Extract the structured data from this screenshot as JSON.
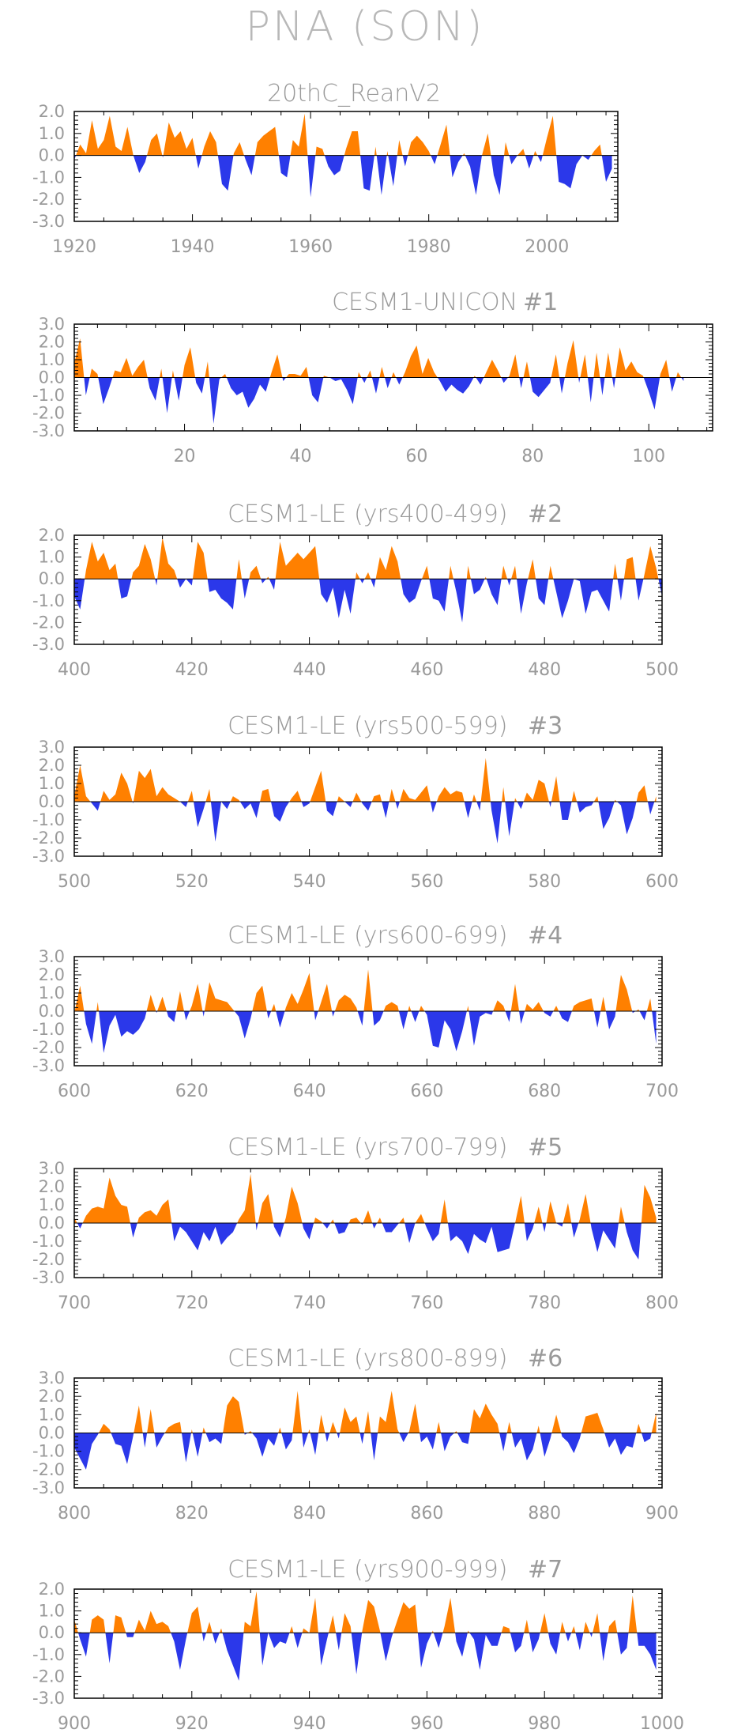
{
  "title": "PNA (SON)",
  "colors": {
    "positive": "#ff8000",
    "negative": "#2b38ea",
    "axis": "#000000",
    "text": "#9a9a9a"
  },
  "chart_data": [
    {
      "type": "area",
      "title": "20thC_ReanV2",
      "xlim": [
        1920,
        2012
      ],
      "xticks": [
        1920,
        1940,
        1960,
        1980,
        2000
      ],
      "ylim": [
        -3.0,
        2.0
      ],
      "yticks": [
        "2.0",
        "1.0",
        "0.0",
        "-1.0",
        "-2.0",
        "-3.0"
      ],
      "x_start": 1920,
      "values": [
        -0.2,
        0.5,
        0.1,
        1.6,
        0.3,
        0.7,
        1.8,
        0.4,
        0.2,
        1.3,
        0.0,
        -0.8,
        -0.3,
        0.7,
        1.0,
        -0.1,
        1.5,
        0.8,
        1.1,
        0.3,
        0.8,
        -0.6,
        0.4,
        1.1,
        0.6,
        -1.3,
        -1.6,
        0.1,
        0.6,
        -0.2,
        -0.9,
        0.6,
        0.9,
        1.1,
        1.3,
        -0.8,
        -1.0,
        0.7,
        0.4,
        1.9,
        -1.9,
        0.4,
        0.3,
        -0.5,
        -0.9,
        -0.7,
        0.3,
        1.1,
        1.1,
        -1.5,
        -1.6,
        0.4,
        -1.8,
        0.2,
        -1.4,
        0.7,
        -0.5,
        0.6,
        0.9,
        0.6,
        0.2,
        -0.4,
        0.5,
        1.4,
        -1.0,
        -0.3,
        0.1,
        -0.5,
        -1.8,
        0.0,
        1.0,
        -0.9,
        -1.8,
        0.6,
        -0.4,
        0.0,
        0.3,
        -0.6,
        0.2,
        -0.3,
        0.8,
        1.8,
        -1.2,
        -1.3,
        -1.5,
        -0.4,
        0.0,
        -0.2,
        0.2,
        0.5,
        -1.2,
        -0.6
      ]
    },
    {
      "type": "area",
      "title": "CESM1-UNICON",
      "run_label": "#1",
      "xlim": [
        1,
        111
      ],
      "xticks": [
        20,
        40,
        60,
        80,
        100
      ],
      "ylim": [
        -3.0,
        3.0
      ],
      "yticks": [
        "3.0",
        "2.0",
        "1.0",
        "0.0",
        "-1.0",
        "-2.0",
        "-3.0"
      ],
      "x_start": 1,
      "values": [
        0.8,
        2.2,
        -1.0,
        0.5,
        0.2,
        -1.5,
        -0.6,
        0.4,
        0.3,
        1.1,
        0.1,
        0.6,
        1.0,
        -0.6,
        -1.3,
        0.5,
        -2.0,
        0.4,
        -1.3,
        0.7,
        1.7,
        -0.3,
        -0.9,
        0.9,
        -2.6,
        -0.1,
        0.2,
        -0.6,
        -1.0,
        -0.8,
        -1.7,
        -1.2,
        -0.4,
        -0.8,
        0.3,
        1.3,
        -0.2,
        0.2,
        0.2,
        0.1,
        0.6,
        -1.0,
        -1.4,
        0.1,
        0.0,
        -0.2,
        -0.1,
        -0.7,
        -1.5,
        0.3,
        -0.3,
        0.4,
        -0.9,
        0.6,
        -0.6,
        0.3,
        -0.4,
        0.3,
        1.2,
        1.8,
        0.2,
        1.1,
        0.3,
        -0.2,
        -0.8,
        -0.4,
        -0.7,
        -0.9,
        -0.5,
        0.1,
        -0.4,
        0.3,
        1.0,
        0.4,
        -0.3,
        0.1,
        1.3,
        -0.6,
        0.9,
        -0.8,
        -1.1,
        -0.7,
        -0.3,
        1.3,
        -0.9,
        0.8,
        2.1,
        -0.3,
        1.3,
        -1.4,
        1.4,
        -1.0,
        1.4,
        -0.6,
        1.7,
        0.4,
        0.9,
        0.3,
        0.1,
        -0.8,
        -1.8,
        0.2,
        1.0,
        -0.8,
        0.3,
        -0.2
      ]
    },
    {
      "type": "area",
      "title": "CESM1-LE (yrs400-499)",
      "run_label": "#2",
      "xlim": [
        400,
        500
      ],
      "xticks": [
        400,
        420,
        440,
        460,
        480,
        500
      ],
      "ylim": [
        -3.0,
        2.0
      ],
      "yticks": [
        "2.0",
        "1.0",
        "0.0",
        "-1.0",
        "-2.0",
        "-3.0"
      ],
      "x_start": 400,
      "values": [
        -0.8,
        -1.4,
        0.4,
        1.7,
        0.8,
        1.2,
        0.4,
        0.7,
        -0.9,
        -0.8,
        0.3,
        0.6,
        1.6,
        0.9,
        -0.3,
        1.9,
        0.7,
        0.4,
        -0.4,
        0.0,
        -0.3,
        1.7,
        1.2,
        -0.6,
        -0.5,
        -0.9,
        -1.1,
        -1.4,
        0.9,
        -0.9,
        0.3,
        0.6,
        -0.2,
        0.1,
        -0.5,
        1.7,
        0.6,
        0.9,
        1.2,
        0.9,
        1.2,
        1.5,
        -0.7,
        -1.1,
        -0.4,
        -1.8,
        -0.5,
        -1.6,
        0.3,
        -0.2,
        0.3,
        -0.4,
        1.0,
        0.4,
        1.5,
        0.8,
        -0.7,
        -1.1,
        -0.9,
        -0.1,
        0.6,
        -0.9,
        -1.0,
        -1.5,
        0.6,
        -0.6,
        -2.0,
        0.6,
        -0.7,
        -0.5,
        0.1,
        -0.7,
        -1.2,
        0.6,
        -0.3,
        0.6,
        -1.6,
        -0.2,
        0.9,
        -0.9,
        -1.2,
        0.6,
        -0.6,
        -1.8,
        -1.0,
        0.0,
        -0.1,
        -1.6,
        -0.6,
        -0.5,
        -1.0,
        -1.5,
        0.7,
        -1.0,
        0.9,
        1.0,
        -1.0,
        0.2,
        1.5,
        0.5,
        -0.8
      ]
    },
    {
      "type": "area",
      "title": "CESM1-LE (yrs500-599)",
      "run_label": "#3",
      "xlim": [
        500,
        600
      ],
      "xticks": [
        500,
        520,
        540,
        560,
        580,
        600
      ],
      "ylim": [
        -3.0,
        3.0
      ],
      "yticks": [
        "3.0",
        "2.0",
        "1.0",
        "0.0",
        "-1.0",
        "-2.0",
        "-3.0"
      ],
      "x_start": 500,
      "values": [
        0.3,
        2.0,
        0.3,
        -0.1,
        -0.5,
        0.6,
        0.1,
        0.4,
        1.6,
        1.0,
        -0.1,
        1.7,
        1.3,
        1.8,
        0.3,
        0.8,
        0.4,
        0.2,
        0.0,
        -0.3,
        0.6,
        -1.4,
        -0.4,
        0.7,
        -2.2,
        0.0,
        -0.4,
        0.3,
        0.1,
        -0.4,
        -0.1,
        -0.9,
        0.6,
        0.7,
        -0.8,
        -1.1,
        -0.3,
        0.2,
        0.6,
        -0.3,
        -0.1,
        0.8,
        1.7,
        -0.5,
        -0.8,
        0.3,
        0.0,
        -0.3,
        0.5,
        -0.1,
        -0.5,
        0.3,
        0.4,
        -0.9,
        0.7,
        -0.4,
        0.7,
        0.2,
        0.1,
        0.5,
        0.9,
        -0.6,
        0.3,
        0.8,
        0.4,
        0.6,
        0.5,
        -0.9,
        0.4,
        -0.5,
        2.4,
        -0.5,
        -2.3,
        0.8,
        -1.9,
        0.2,
        -0.4,
        0.5,
        0.1,
        1.2,
        1.0,
        -0.3,
        1.4,
        -1.0,
        -1.0,
        0.6,
        -0.6,
        -0.3,
        -0.2,
        0.3,
        -1.5,
        -0.9,
        0.1,
        -0.2,
        -1.8,
        -0.9,
        0.5,
        0.9,
        -0.7,
        0.3
      ]
    },
    {
      "type": "area",
      "title": "CESM1-LE (yrs600-699)",
      "run_label": "#4",
      "xlim": [
        600,
        700
      ],
      "xticks": [
        600,
        620,
        640,
        660,
        680,
        700
      ],
      "ylim": [
        -3.0,
        3.0
      ],
      "yticks": [
        "3.0",
        "2.0",
        "1.0",
        "0.0",
        "-1.0",
        "-2.0",
        "-3.0"
      ],
      "x_start": 600,
      "values": [
        -0.1,
        1.4,
        -0.7,
        -1.8,
        0.5,
        -2.3,
        -0.8,
        -0.2,
        -1.4,
        -1.1,
        -1.3,
        -1.0,
        -0.4,
        0.9,
        -0.1,
        0.8,
        -0.3,
        -0.6,
        1.1,
        -0.5,
        0.3,
        1.5,
        -0.3,
        1.6,
        0.7,
        0.6,
        0.5,
        0.1,
        -0.3,
        -1.5,
        -0.4,
        1.0,
        1.4,
        -0.4,
        0.4,
        -0.9,
        0.2,
        1.0,
        0.4,
        1.2,
        2.1,
        -0.5,
        0.5,
        1.5,
        -0.3,
        0.6,
        0.9,
        0.7,
        0.2,
        -0.8,
        2.3,
        -0.8,
        -0.5,
        0.3,
        0.5,
        0.3,
        -1.0,
        0.3,
        -0.6,
        0.3,
        -0.2,
        -1.9,
        -2.0,
        -0.5,
        -1.0,
        -2.2,
        -1.1,
        0.3,
        -1.9,
        -0.3,
        -0.1,
        -0.2,
        0.6,
        0.3,
        -0.6,
        1.5,
        -0.7,
        0.4,
        0.1,
        0.5,
        -0.1,
        -0.3,
        0.3,
        -0.4,
        -0.6,
        0.3,
        0.5,
        0.6,
        0.7,
        -0.9,
        0.8,
        -1.0,
        -0.3,
        2.0,
        1.2,
        -0.1,
        0.1,
        -0.5,
        0.7,
        -1.8
      ]
    },
    {
      "type": "area",
      "title": "CESM1-LE (yrs700-799)",
      "run_label": "#5",
      "xlim": [
        700,
        800
      ],
      "xticks": [
        700,
        720,
        740,
        760,
        780,
        800
      ],
      "ylim": [
        -3.0,
        3.0
      ],
      "yticks": [
        "3.0",
        "2.0",
        "1.0",
        "0.0",
        "-1.0",
        "-2.0",
        "-3.0"
      ],
      "x_start": 700,
      "values": [
        0.3,
        -0.3,
        0.4,
        0.8,
        0.9,
        0.8,
        2.5,
        1.5,
        1.0,
        0.9,
        -0.8,
        0.3,
        0.6,
        0.7,
        0.4,
        1.0,
        1.3,
        -1.0,
        -0.2,
        -0.5,
        -1.0,
        -1.5,
        -0.5,
        -1.0,
        -0.2,
        -1.2,
        -0.8,
        -0.5,
        0.2,
        0.7,
        2.7,
        -0.4,
        1.1,
        1.6,
        -0.2,
        -0.8,
        0.3,
        2.0,
        1.1,
        -0.3,
        -0.9,
        0.3,
        0.1,
        -0.3,
        0.2,
        -0.6,
        -0.5,
        0.2,
        0.3,
        -0.1,
        0.7,
        -0.3,
        0.3,
        -0.5,
        -0.5,
        -0.1,
        0.3,
        -1.1,
        0.0,
        0.5,
        -0.3,
        -1.0,
        -0.6,
        1.3,
        -1.0,
        -0.7,
        -1.0,
        -1.7,
        -0.6,
        -0.9,
        -1.1,
        -0.2,
        -1.6,
        -1.5,
        -1.4,
        0.0,
        1.5,
        -1.0,
        -0.3,
        0.9,
        -0.5,
        1.2,
        0.0,
        -0.2,
        1.1,
        -0.8,
        0.2,
        1.6,
        -0.3,
        -1.6,
        -0.4,
        -0.9,
        -1.4,
        0.9,
        -0.5,
        -1.5,
        -2.0,
        2.1,
        1.4,
        0.3
      ]
    },
    {
      "type": "area",
      "title": "CESM1-LE (yrs800-899)",
      "run_label": "#6",
      "xlim": [
        800,
        900
      ],
      "xticks": [
        800,
        820,
        840,
        860,
        880,
        900
      ],
      "ylim": [
        -3.0,
        3.0
      ],
      "yticks": [
        "3.0",
        "2.0",
        "1.0",
        "0.0",
        "-1.0",
        "-2.0",
        "-3.0"
      ],
      "x_start": 800,
      "values": [
        -0.8,
        -1.4,
        -2.0,
        -0.6,
        -0.1,
        0.5,
        0.2,
        -0.6,
        -0.7,
        -1.7,
        -0.2,
        1.5,
        -0.8,
        1.3,
        -0.8,
        -0.2,
        0.3,
        0.5,
        0.6,
        -1.6,
        0.2,
        -1.3,
        0.3,
        -0.5,
        -0.3,
        -0.6,
        1.5,
        2.0,
        1.7,
        -0.1,
        0.1,
        -0.3,
        -1.3,
        -0.3,
        -0.7,
        0.3,
        -0.9,
        -0.4,
        2.3,
        -0.8,
        0.2,
        -1.2,
        1.0,
        -0.5,
        0.6,
        -0.3,
        1.4,
        0.6,
        0.9,
        -0.6,
        1.2,
        -1.5,
        0.9,
        0.6,
        2.3,
        0.2,
        -0.5,
        0.1,
        1.6,
        -0.5,
        -0.2,
        -0.9,
        0.6,
        -1.0,
        -0.2,
        0.1,
        -0.5,
        -0.6,
        1.3,
        0.8,
        1.6,
        1.0,
        0.5,
        -1.0,
        0.6,
        -0.8,
        -0.3,
        -1.5,
        -0.9,
        0.4,
        -1.3,
        -0.3,
        1.0,
        -0.2,
        -0.5,
        -1.1,
        -0.3,
        0.9,
        1.0,
        1.1,
        0.2,
        -0.8,
        -0.3,
        -1.2,
        -0.7,
        -0.8,
        0.5,
        -0.5,
        -0.3,
        1.1
      ]
    },
    {
      "type": "area",
      "title": "CESM1-LE (yrs900-999)",
      "run_label": "#7",
      "xlim": [
        900,
        1000
      ],
      "xticks": [
        900,
        920,
        940,
        960,
        980,
        1000
      ],
      "ylim": [
        -3.0,
        2.0
      ],
      "yticks": [
        "2.0",
        "1.0",
        "0.0",
        "-1.0",
        "-2.0",
        "-3.0"
      ],
      "x_start": 900,
      "values": [
        0.6,
        -0.3,
        -1.1,
        0.6,
        0.8,
        0.6,
        -1.4,
        0.8,
        0.7,
        -0.2,
        -0.2,
        0.6,
        0.1,
        1.0,
        0.4,
        0.5,
        0.3,
        -0.4,
        -1.7,
        -0.3,
        0.9,
        1.2,
        -0.4,
        0.5,
        -0.5,
        0.2,
        -0.8,
        -1.5,
        -2.2,
        0.5,
        0.3,
        1.9,
        -1.5,
        0.0,
        -0.7,
        -0.4,
        -0.5,
        0.3,
        -0.7,
        0.2,
        0.0,
        1.6,
        -1.5,
        -0.3,
        0.8,
        -0.8,
        0.9,
        0.3,
        -1.9,
        0.1,
        1.5,
        1.2,
        0.1,
        -1.3,
        -0.2,
        0.6,
        1.4,
        1.1,
        1.3,
        -1.6,
        -0.5,
        0.1,
        -0.7,
        0.3,
        1.6,
        -0.4,
        -1.1,
        0.1,
        -0.3,
        -1.7,
        -0.1,
        -0.6,
        -0.6,
        0.3,
        0.2,
        -0.9,
        -0.6,
        0.6,
        -0.9,
        -0.3,
        0.9,
        -0.5,
        -1.0,
        0.5,
        -0.4,
        0.3,
        -0.8,
        0.5,
        -0.2,
        0.9,
        -1.3,
        0.3,
        0.6,
        -1.0,
        -0.7,
        1.7,
        -0.6,
        -0.6,
        -1.0,
        -1.7
      ]
    }
  ]
}
